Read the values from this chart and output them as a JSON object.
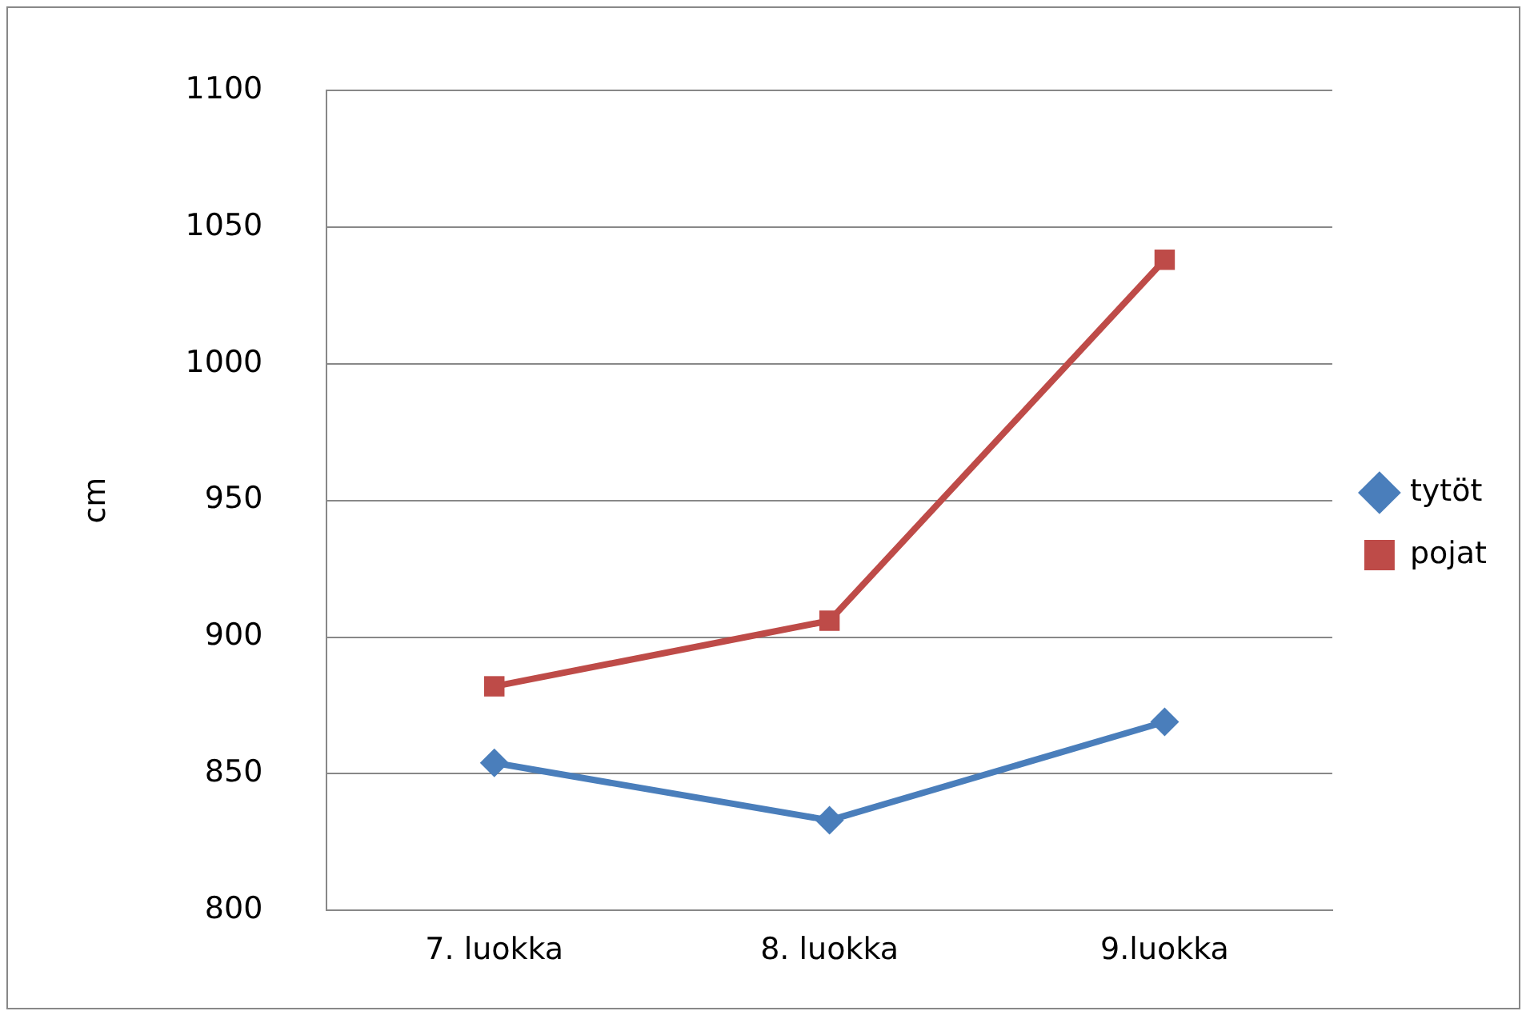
{
  "chart_data": {
    "type": "line",
    "ylabel": "cm",
    "categories": [
      "7. luokka",
      "8. luokka",
      "9.luokka"
    ],
    "series": [
      {
        "name": "tytöt",
        "color": "#4a7ebb",
        "marker": "diamond",
        "values": [
          854,
          833,
          869
        ]
      },
      {
        "name": "pojat",
        "color": "#be4b48",
        "marker": "square",
        "values": [
          882,
          906,
          1038
        ]
      }
    ],
    "ylim": [
      800,
      1100
    ],
    "yticks": [
      800,
      850,
      900,
      950,
      1000,
      1050,
      1100
    ],
    "grid": "y",
    "legend": "right"
  }
}
